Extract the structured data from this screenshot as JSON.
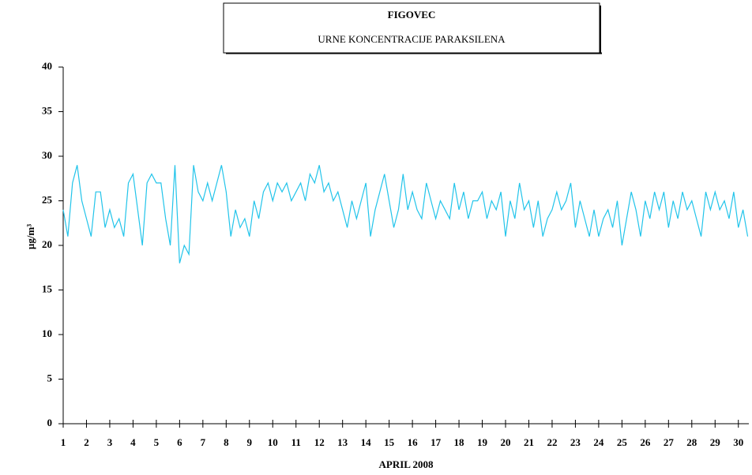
{
  "chart_data": {
    "type": "line",
    "title": "FIGOVEC",
    "subtitle": "URNE KONCENTRACIJE PARAKSILENA",
    "xlabel": "APRIL 2008",
    "ylabel": "µg/m³",
    "xlim": [
      1,
      30.45
    ],
    "ylim": [
      0,
      40
    ],
    "yticks": [
      0,
      5,
      10,
      15,
      20,
      25,
      30,
      35,
      40
    ],
    "xticks": [
      1,
      2,
      3,
      4,
      5,
      6,
      7,
      8,
      9,
      10,
      11,
      12,
      13,
      14,
      15,
      16,
      17,
      18,
      19,
      20,
      21,
      22,
      23,
      24,
      25,
      26,
      27,
      28,
      29,
      30
    ],
    "grid": false,
    "x": [
      1.0,
      1.2,
      1.4,
      1.6,
      1.8,
      2.0,
      2.2,
      2.4,
      2.6,
      2.8,
      3.0,
      3.2,
      3.4,
      3.6,
      3.8,
      4.0,
      4.2,
      4.4,
      4.6,
      4.8,
      5.0,
      5.2,
      5.4,
      5.6,
      5.8,
      6.0,
      6.2,
      6.4,
      6.6,
      6.8,
      7.0,
      7.2,
      7.4,
      7.6,
      7.8,
      8.0,
      8.2,
      8.4,
      8.6,
      8.8,
      9.0,
      9.2,
      9.4,
      9.6,
      9.8,
      10.0,
      10.2,
      10.4,
      10.6,
      10.8,
      11.0,
      11.2,
      11.4,
      11.6,
      11.8,
      12.0,
      12.2,
      12.4,
      12.6,
      12.8,
      13.0,
      13.2,
      13.4,
      13.6,
      13.8,
      14.0,
      14.2,
      14.4,
      14.6,
      14.8,
      15.0,
      15.2,
      15.4,
      15.6,
      15.8,
      16.0,
      16.2,
      16.4,
      16.6,
      16.8,
      17.0,
      17.2,
      17.4,
      17.6,
      17.8,
      18.0,
      18.2,
      18.4,
      18.6,
      18.8,
      19.0,
      19.2,
      19.4,
      19.6,
      19.8,
      20.0,
      20.2,
      20.4,
      20.6,
      20.8,
      21.0,
      21.2,
      21.4,
      21.6,
      21.8,
      22.0,
      22.2,
      22.4,
      22.6,
      22.8,
      23.0,
      23.2,
      23.4,
      23.6,
      23.8,
      24.0,
      24.2,
      24.4,
      24.6,
      24.8,
      25.0,
      25.2,
      25.4,
      25.6,
      25.8,
      26.0,
      26.2,
      26.4,
      26.6,
      26.8,
      27.0,
      27.2,
      27.4,
      27.6,
      27.8,
      28.0,
      28.2,
      28.4,
      28.6,
      28.8,
      29.0,
      29.2,
      29.4,
      29.6,
      29.8,
      30.0,
      30.2,
      30.4
    ],
    "series": [
      {
        "color": "#22c4ea",
        "values": [
          24,
          21,
          27,
          29,
          25,
          23,
          21,
          26,
          26,
          22,
          24,
          22,
          23,
          21,
          27,
          28,
          24,
          20,
          27,
          28,
          27,
          27,
          23,
          20,
          29,
          18,
          20,
          19,
          29,
          26,
          25,
          27,
          25,
          27,
          29,
          26,
          21,
          24,
          22,
          23,
          21,
          25,
          23,
          26,
          27,
          25,
          27,
          26,
          27,
          25,
          26,
          27,
          25,
          28,
          27,
          29,
          26,
          27,
          25,
          26,
          24,
          22,
          25,
          23,
          25,
          27,
          21,
          24,
          26,
          28,
          25,
          22,
          24,
          28,
          24,
          26,
          24,
          23,
          27,
          25,
          23,
          25,
          24,
          23,
          27,
          24,
          26,
          23,
          25,
          25,
          26,
          23,
          25,
          24,
          26,
          21,
          25,
          23,
          27,
          24,
          25,
          22,
          25,
          21,
          23,
          24,
          26,
          24,
          25,
          27,
          22,
          25,
          23,
          21,
          24,
          21,
          23,
          24,
          22,
          25,
          20,
          23,
          26,
          24,
          21,
          25,
          23,
          26,
          24,
          26,
          22,
          25,
          23,
          26,
          24,
          25,
          23,
          21,
          26,
          24,
          26,
          24,
          25,
          23,
          26,
          22,
          24,
          21
        ]
      }
    ]
  }
}
